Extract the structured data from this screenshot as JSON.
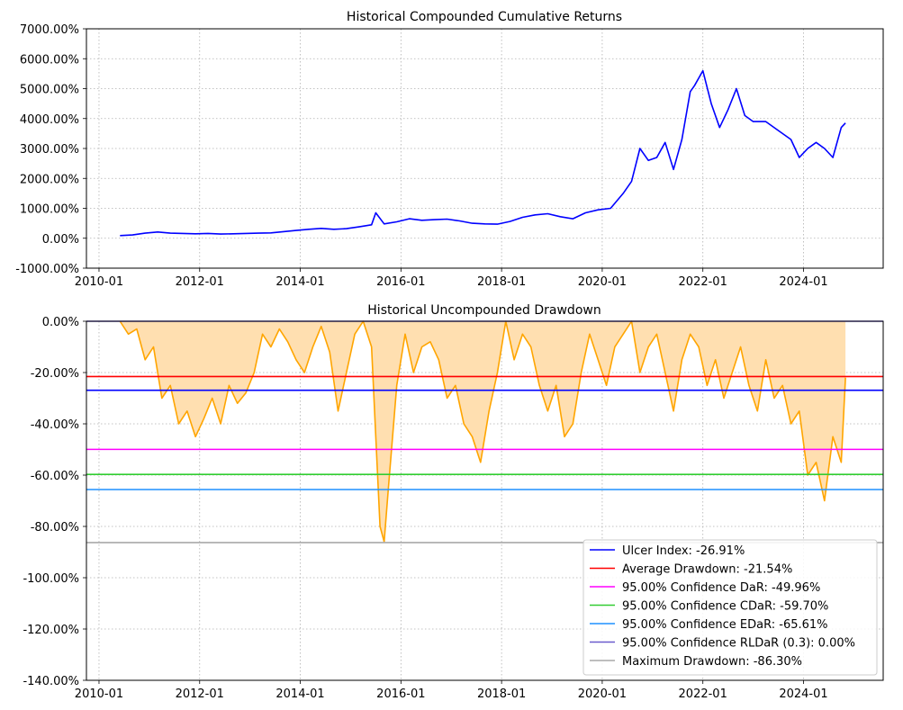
{
  "figure": {
    "chart_data": [
      {
        "type": "line",
        "title": "Historical Compounded Cumulative Returns",
        "xlabel": "",
        "ylabel": "",
        "x_tick_labels": [
          "2010-01",
          "2012-01",
          "2014-01",
          "2016-01",
          "2018-01",
          "2020-01",
          "2022-01",
          "2024-01"
        ],
        "y_tick_labels": [
          "-1000.00%",
          "0.00%",
          "1000.00%",
          "2000.00%",
          "3000.00%",
          "4000.00%",
          "5000.00%",
          "6000.00%",
          "7000.00%"
        ],
        "ylim": [
          -1000,
          7000
        ],
        "xlim": [
          "2009-10",
          "2025-08"
        ],
        "grid": true,
        "line_color": "#0000ff",
        "series": [
          {
            "x": [
              "2010-06",
              "2010-09",
              "2010-12",
              "2011-03",
              "2011-06",
              "2011-09",
              "2011-12",
              "2012-03",
              "2012-06",
              "2012-09",
              "2012-12",
              "2013-03",
              "2013-06",
              "2013-09",
              "2013-12",
              "2014-03",
              "2014-06",
              "2014-09",
              "2014-12",
              "2015-03",
              "2015-06",
              "2015-07",
              "2015-09",
              "2015-12",
              "2016-03",
              "2016-06",
              "2016-09",
              "2016-12",
              "2017-03",
              "2017-06",
              "2017-09",
              "2017-12",
              "2018-03",
              "2018-06",
              "2018-09",
              "2018-12",
              "2019-03",
              "2019-06",
              "2019-09",
              "2019-12",
              "2020-03",
              "2020-06",
              "2020-08",
              "2020-10",
              "2020-12",
              "2021-02",
              "2021-04",
              "2021-06",
              "2021-08",
              "2021-10",
              "2021-11",
              "2022-01",
              "2022-03",
              "2022-05",
              "2022-07",
              "2022-09",
              "2022-11",
              "2023-01",
              "2023-04",
              "2023-07",
              "2023-10",
              "2023-12",
              "2024-02",
              "2024-04",
              "2024-06",
              "2024-08",
              "2024-10",
              "2024-11"
            ],
            "y": [
              90,
              110,
              170,
              210,
              170,
              160,
              150,
              160,
              140,
              150,
              160,
              170,
              180,
              220,
              260,
              300,
              330,
              300,
              320,
              380,
              450,
              850,
              480,
              550,
              650,
              600,
              620,
              640,
              580,
              500,
              480,
              470,
              560,
              700,
              780,
              820,
              720,
              650,
              850,
              950,
              1000,
              1500,
              1900,
              3000,
              2600,
              2700,
              3200,
              2300,
              3300,
              4900,
              5100,
              5600,
              4500,
              3700,
              4300,
              5000,
              4100,
              3900,
              3900,
              3600,
              3300,
              2700,
              3000,
              3200,
              3000,
              2700,
              3700,
              3850
            ]
          }
        ]
      },
      {
        "type": "area",
        "title": "Historical Uncompounded Drawdown",
        "xlabel": "",
        "ylabel": "",
        "x_tick_labels": [
          "2010-01",
          "2012-01",
          "2014-01",
          "2016-01",
          "2018-01",
          "2020-01",
          "2022-01",
          "2024-01"
        ],
        "y_tick_labels": [
          "-140.00%",
          "-120.00%",
          "-100.00%",
          "-80.00%",
          "-60.00%",
          "-40.00%",
          "-20.00%",
          "0.00%"
        ],
        "ylim": [
          -140,
          0
        ],
        "xlim": [
          "2009-10",
          "2025-08"
        ],
        "grid": true,
        "line_color": "#ffa500",
        "fill_color": "#ffdfb0",
        "series": [
          {
            "x": [
              "2010-06",
              "2010-08",
              "2010-10",
              "2010-12",
              "2011-02",
              "2011-04",
              "2011-06",
              "2011-08",
              "2011-10",
              "2011-12",
              "2012-02",
              "2012-04",
              "2012-06",
              "2012-08",
              "2012-10",
              "2012-12",
              "2013-02",
              "2013-04",
              "2013-06",
              "2013-08",
              "2013-10",
              "2013-12",
              "2014-02",
              "2014-04",
              "2014-06",
              "2014-08",
              "2014-10",
              "2014-12",
              "2015-02",
              "2015-04",
              "2015-06",
              "2015-08",
              "2015-09",
              "2015-10",
              "2015-12",
              "2016-02",
              "2016-04",
              "2016-06",
              "2016-08",
              "2016-10",
              "2016-12",
              "2017-02",
              "2017-04",
              "2017-06",
              "2017-08",
              "2017-10",
              "2017-12",
              "2018-02",
              "2018-04",
              "2018-06",
              "2018-08",
              "2018-10",
              "2018-12",
              "2019-02",
              "2019-04",
              "2019-06",
              "2019-08",
              "2019-10",
              "2019-12",
              "2020-02",
              "2020-04",
              "2020-06",
              "2020-08",
              "2020-10",
              "2020-12",
              "2021-02",
              "2021-04",
              "2021-06",
              "2021-08",
              "2021-10",
              "2021-12",
              "2022-02",
              "2022-04",
              "2022-06",
              "2022-08",
              "2022-10",
              "2022-12",
              "2023-02",
              "2023-04",
              "2023-06",
              "2023-08",
              "2023-10",
              "2023-12",
              "2024-02",
              "2024-04",
              "2024-06",
              "2024-08",
              "2024-10",
              "2024-11"
            ],
            "y": [
              0,
              -5,
              -3,
              -15,
              -10,
              -30,
              -25,
              -40,
              -35,
              -45,
              -38,
              -30,
              -40,
              -25,
              -32,
              -28,
              -20,
              -5,
              -10,
              -3,
              -8,
              -15,
              -20,
              -10,
              -2,
              -12,
              -35,
              -20,
              -5,
              0,
              -10,
              -80,
              -86,
              -65,
              -25,
              -5,
              -20,
              -10,
              -8,
              -15,
              -30,
              -25,
              -40,
              -45,
              -55,
              -35,
              -20,
              0,
              -15,
              -5,
              -10,
              -25,
              -35,
              -25,
              -45,
              -40,
              -20,
              -5,
              -15,
              -25,
              -10,
              -5,
              0,
              -20,
              -10,
              -5,
              -20,
              -35,
              -15,
              -5,
              -10,
              -25,
              -15,
              -30,
              -20,
              -10,
              -25,
              -35,
              -15,
              -30,
              -25,
              -40,
              -35,
              -60,
              -55,
              -70,
              -45,
              -55,
              -22
            ]
          }
        ],
        "reference_lines": [
          {
            "label": "Ulcer Index: -26.91%",
            "value": -26.91,
            "color": "#0000ff"
          },
          {
            "label": "Average Drawdown: -21.54%",
            "value": -21.54,
            "color": "#ff0000"
          },
          {
            "label": "95.00% Confidence DaR: -49.96%",
            "value": -49.96,
            "color": "#ff00ff"
          },
          {
            "label": "95.00% Confidence CDaR: -59.70%",
            "value": -59.7,
            "color": "#32cd32"
          },
          {
            "label": "95.00% Confidence EDaR: -65.61%",
            "value": -65.61,
            "color": "#1e90ff"
          },
          {
            "label": "95.00% Confidence RLDaR (0.3): 0.00%",
            "value": 0.0,
            "color": "#6a5acd"
          },
          {
            "label": "Maximum Drawdown: -86.30%",
            "value": -86.3,
            "color": "#a9a9a9"
          }
        ],
        "legend_placement": "lower-right"
      }
    ]
  }
}
